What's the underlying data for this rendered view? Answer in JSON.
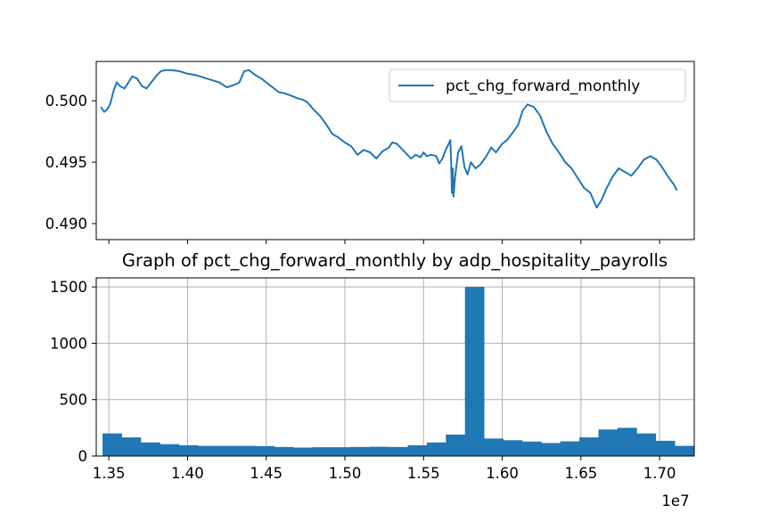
{
  "colors": {
    "series": "#1f77b4",
    "axis": "#000000",
    "grid": "#b0b0b0",
    "legend_border": "#cccccc"
  },
  "chart_data": [
    {
      "type": "line",
      "title": "",
      "xlabel": "",
      "ylabel": "",
      "xlim": [
        13.42,
        17.22
      ],
      "ylim": [
        0.4887,
        0.5032
      ],
      "yticks": [
        0.49,
        0.495,
        0.5
      ],
      "ytick_labels": [
        "0.490",
        "0.495",
        "0.500"
      ],
      "xticks": [
        13.5,
        14.0,
        14.5,
        15.0,
        15.5,
        16.0,
        16.5,
        17.0
      ],
      "xtick_labels_shown": false,
      "grid": false,
      "legend": {
        "placement": "top-right",
        "entries": [
          "pct_chg_forward_monthly"
        ]
      },
      "series": [
        {
          "name": "pct_chg_forward_monthly",
          "x": [
            13.45,
            13.47,
            13.49,
            13.51,
            13.53,
            13.55,
            13.57,
            13.6,
            13.62,
            13.65,
            13.68,
            13.71,
            13.74,
            13.77,
            13.8,
            13.83,
            13.86,
            13.9,
            13.95,
            14.0,
            14.05,
            14.1,
            14.15,
            14.2,
            14.25,
            14.3,
            14.33,
            14.36,
            14.39,
            14.43,
            14.47,
            14.5,
            14.52,
            14.55,
            14.58,
            14.62,
            14.66,
            14.7,
            14.73,
            14.76,
            14.8,
            14.84,
            14.88,
            14.92,
            14.96,
            15.0,
            15.04,
            15.08,
            15.12,
            15.16,
            15.2,
            15.24,
            15.28,
            15.3,
            15.33,
            15.36,
            15.39,
            15.42,
            15.45,
            15.48,
            15.5,
            15.52,
            15.55,
            15.58,
            15.6,
            15.62,
            15.64,
            15.66,
            15.67,
            15.675,
            15.68,
            15.685,
            15.69,
            15.7,
            15.72,
            15.74,
            15.76,
            15.78,
            15.8,
            15.83,
            15.86,
            15.9,
            15.93,
            15.96,
            16.0,
            16.03,
            16.06,
            16.1,
            16.13,
            16.16,
            16.2,
            16.24,
            16.28,
            16.32,
            16.36,
            16.4,
            16.44,
            16.48,
            16.52,
            16.56,
            16.6,
            16.63,
            16.66,
            16.7,
            16.74,
            16.78,
            16.82,
            16.86,
            16.9,
            16.94,
            16.98,
            17.02,
            17.06,
            17.09,
            17.11
          ],
          "y": [
            0.4995,
            0.4991,
            0.4993,
            0.4998,
            0.5008,
            0.5015,
            0.5012,
            0.501,
            0.5014,
            0.502,
            0.5018,
            0.5012,
            0.501,
            0.5015,
            0.502,
            0.5024,
            0.5025,
            0.5025,
            0.5024,
            0.5022,
            0.5021,
            0.5019,
            0.5017,
            0.5015,
            0.5011,
            0.5013,
            0.5015,
            0.5024,
            0.5025,
            0.5021,
            0.5018,
            0.5015,
            0.5013,
            0.501,
            0.5007,
            0.5006,
            0.5004,
            0.5002,
            0.5001,
            0.4999,
            0.4993,
            0.4988,
            0.4981,
            0.4973,
            0.497,
            0.4966,
            0.4963,
            0.4956,
            0.496,
            0.4958,
            0.4953,
            0.4959,
            0.4962,
            0.4966,
            0.4965,
            0.4961,
            0.4957,
            0.4953,
            0.4956,
            0.4954,
            0.4958,
            0.4955,
            0.4956,
            0.4955,
            0.4949,
            0.4953,
            0.496,
            0.4965,
            0.4968,
            0.495,
            0.4925,
            0.4945,
            0.4922,
            0.4938,
            0.4958,
            0.4963,
            0.4946,
            0.494,
            0.495,
            0.4945,
            0.4948,
            0.4955,
            0.4962,
            0.4958,
            0.4965,
            0.4968,
            0.4973,
            0.498,
            0.4992,
            0.4997,
            0.4995,
            0.4988,
            0.4975,
            0.4965,
            0.4958,
            0.495,
            0.4945,
            0.4937,
            0.4929,
            0.4925,
            0.4913,
            0.4919,
            0.4928,
            0.4938,
            0.4945,
            0.4942,
            0.4939,
            0.4945,
            0.4952,
            0.4955,
            0.4952,
            0.4945,
            0.4937,
            0.4932,
            0.4927
          ]
        }
      ]
    },
    {
      "type": "bar",
      "title": "Graph of pct_chg_forward_monthly by adp_hospitality_payrolls",
      "xlabel": "",
      "ylabel": "",
      "xlim": [
        13.42,
        17.22
      ],
      "ylim": [
        0,
        1580
      ],
      "yticks": [
        0,
        500,
        1000,
        1500
      ],
      "ytick_labels": [
        "0",
        "500",
        "1000",
        "1500"
      ],
      "xticks": [
        13.5,
        14.0,
        14.5,
        15.0,
        15.5,
        16.0,
        16.5,
        17.0
      ],
      "xtick_labels": [
        "1.35",
        "1.40",
        "1.45",
        "1.50",
        "1.55",
        "1.60",
        "1.65",
        "1.70"
      ],
      "x_offset_label": "1e7",
      "grid": true,
      "bins": {
        "start": 13.46,
        "width": 0.1212
      },
      "values": [
        200,
        165,
        120,
        105,
        95,
        90,
        90,
        90,
        88,
        80,
        75,
        78,
        78,
        80,
        82,
        80,
        95,
        120,
        190,
        1500,
        155,
        140,
        128,
        115,
        130,
        165,
        235,
        250,
        200,
        135,
        90
      ]
    }
  ]
}
